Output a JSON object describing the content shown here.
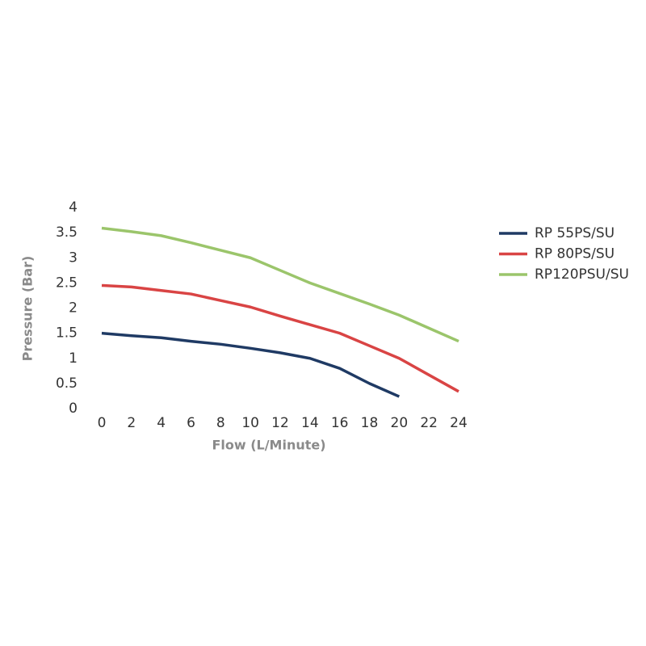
{
  "chart_data": {
    "type": "line",
    "x_label": "Flow (L/Minute)",
    "y_label": "Pressure (Bar)",
    "x": [
      0,
      2,
      4,
      6,
      8,
      10,
      12,
      14,
      16,
      18,
      20,
      22,
      24
    ],
    "series": [
      {
        "name": "RP 55PS/SU",
        "color": "#1f3a64",
        "values": [
          1.5,
          1.45,
          1.41,
          1.34,
          1.28,
          1.2,
          1.11,
          1.0,
          0.8,
          0.5,
          0.24,
          null,
          null
        ]
      },
      {
        "name": "RP 80PS/SU",
        "color": "#d94444",
        "values": [
          2.45,
          2.42,
          2.35,
          2.28,
          2.15,
          2.02,
          1.84,
          1.67,
          1.5,
          1.25,
          1.0,
          0.67,
          0.34
        ]
      },
      {
        "name": "RP120PSU/SU",
        "color": "#9bc56b",
        "values": [
          3.59,
          3.52,
          3.44,
          3.3,
          3.15,
          3.0,
          2.75,
          2.5,
          2.29,
          2.08,
          1.86,
          1.6,
          1.34
        ]
      }
    ],
    "xlim": [
      0,
      24
    ],
    "xticks": [
      0,
      2,
      4,
      6,
      8,
      10,
      12,
      14,
      16,
      18,
      20,
      22,
      24
    ],
    "ylim": [
      0,
      4
    ],
    "yticks": [
      0,
      0.5,
      1,
      1.5,
      2,
      2.5,
      3,
      3.5,
      4
    ],
    "grid": false,
    "legend": "right"
  }
}
